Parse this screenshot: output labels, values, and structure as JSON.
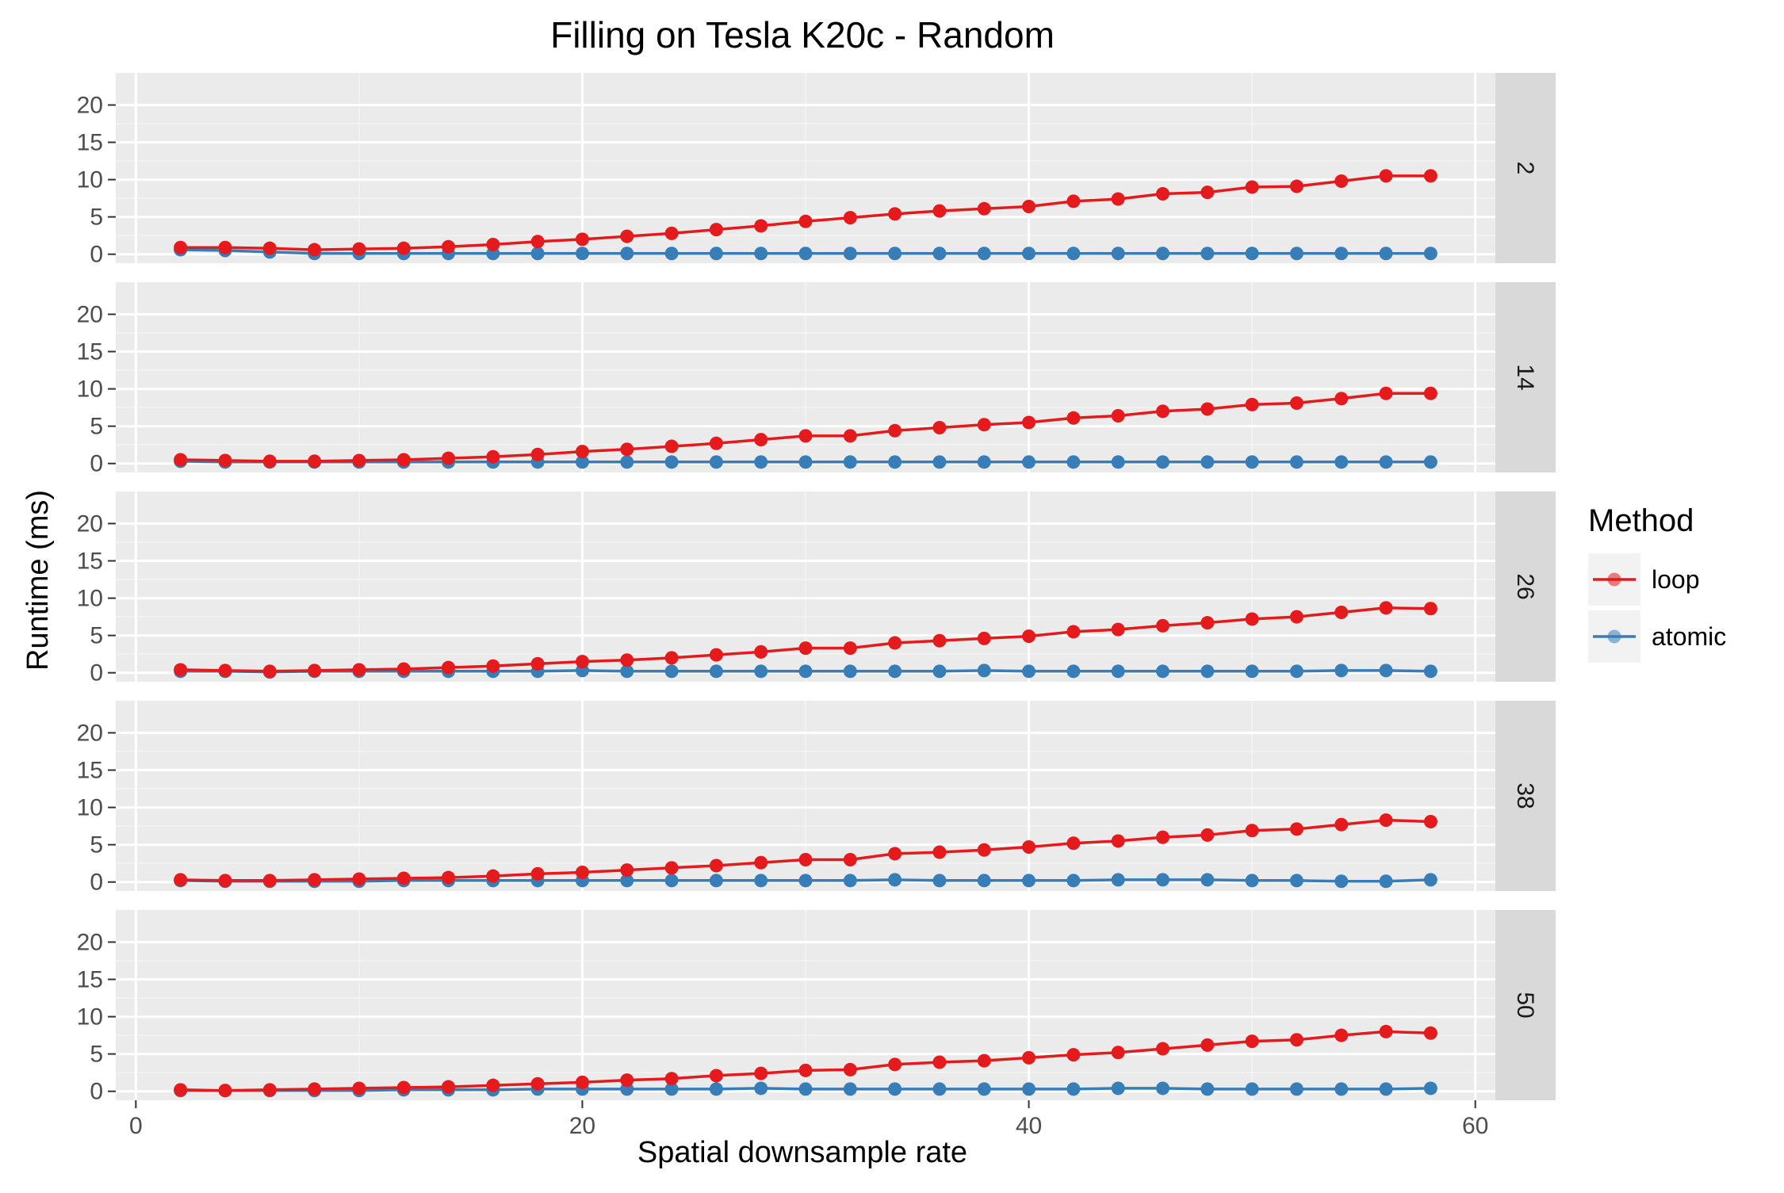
{
  "chart_data": {
    "type": "line",
    "title": "Filling on Tesla K20c - Random",
    "xlabel": "Spatial downsample rate",
    "ylabel": "Runtime (ms)",
    "xlim": [
      -0.9,
      60.9
    ],
    "ylim": [
      -1.2,
      24.3
    ],
    "x_ticks": [
      0,
      20,
      40,
      60
    ],
    "y_ticks": [
      0,
      5,
      10,
      15,
      20
    ],
    "grid": true,
    "legend": {
      "title": "Method",
      "position": "right",
      "entries": [
        "loop",
        "atomic"
      ]
    },
    "colors": {
      "loop": "#e41a1c",
      "atomic": "#377eb8"
    },
    "x": [
      2,
      4,
      6,
      8,
      10,
      12,
      14,
      16,
      18,
      20,
      22,
      24,
      26,
      28,
      30,
      32,
      34,
      36,
      38,
      40,
      42,
      44,
      46,
      48,
      50,
      52,
      54,
      56,
      58
    ],
    "panels": [
      {
        "label": "2",
        "series": [
          {
            "name": "loop",
            "values": [
              0.9,
              0.9,
              0.8,
              0.6,
              0.7,
              0.8,
              1.0,
              1.3,
              1.7,
              2.0,
              2.4,
              2.8,
              3.3,
              3.8,
              4.4,
              4.9,
              5.4,
              5.8,
              6.1,
              6.4,
              7.1,
              7.4,
              8.1,
              8.3,
              9.0,
              9.1,
              9.8,
              10.5,
              10.5
            ]
          },
          {
            "name": "atomic",
            "values": [
              0.6,
              0.5,
              0.3,
              0.1,
              0.1,
              0.1,
              0.1,
              0.1,
              0.1,
              0.1,
              0.1,
              0.1,
              0.1,
              0.1,
              0.1,
              0.1,
              0.1,
              0.1,
              0.1,
              0.1,
              0.1,
              0.1,
              0.1,
              0.1,
              0.1,
              0.1,
              0.1,
              0.1,
              0.1
            ]
          }
        ]
      },
      {
        "label": "14",
        "series": [
          {
            "name": "loop",
            "values": [
              0.5,
              0.4,
              0.3,
              0.3,
              0.4,
              0.5,
              0.7,
              0.9,
              1.2,
              1.6,
              1.9,
              2.3,
              2.7,
              3.2,
              3.7,
              3.7,
              4.4,
              4.8,
              5.2,
              5.5,
              6.1,
              6.4,
              7.0,
              7.3,
              7.9,
              8.1,
              8.7,
              9.4,
              9.4
            ]
          },
          {
            "name": "atomic",
            "values": [
              0.3,
              0.2,
              0.2,
              0.2,
              0.2,
              0.2,
              0.2,
              0.2,
              0.2,
              0.2,
              0.2,
              0.2,
              0.2,
              0.2,
              0.2,
              0.2,
              0.2,
              0.2,
              0.2,
              0.2,
              0.2,
              0.2,
              0.2,
              0.2,
              0.2,
              0.2,
              0.2,
              0.2,
              0.2
            ]
          }
        ]
      },
      {
        "label": "26",
        "series": [
          {
            "name": "loop",
            "values": [
              0.4,
              0.3,
              0.2,
              0.3,
              0.4,
              0.5,
              0.7,
              0.9,
              1.2,
              1.5,
              1.7,
              2.0,
              2.4,
              2.8,
              3.3,
              3.3,
              4.0,
              4.3,
              4.6,
              4.9,
              5.5,
              5.8,
              6.3,
              6.7,
              7.2,
              7.5,
              8.1,
              8.7,
              8.6
            ]
          },
          {
            "name": "atomic",
            "values": [
              0.2,
              0.2,
              0.1,
              0.2,
              0.2,
              0.2,
              0.2,
              0.2,
              0.2,
              0.3,
              0.2,
              0.2,
              0.2,
              0.2,
              0.2,
              0.2,
              0.2,
              0.2,
              0.3,
              0.2,
              0.2,
              0.2,
              0.2,
              0.2,
              0.2,
              0.2,
              0.3,
              0.3,
              0.2
            ]
          }
        ]
      },
      {
        "label": "38",
        "series": [
          {
            "name": "loop",
            "values": [
              0.3,
              0.2,
              0.2,
              0.3,
              0.4,
              0.5,
              0.6,
              0.8,
              1.1,
              1.3,
              1.6,
              1.9,
              2.2,
              2.6,
              3.0,
              3.0,
              3.8,
              4.0,
              4.3,
              4.7,
              5.2,
              5.5,
              6.0,
              6.3,
              6.9,
              7.1,
              7.7,
              8.3,
              8.1
            ]
          },
          {
            "name": "atomic",
            "values": [
              0.2,
              0.1,
              0.1,
              0.1,
              0.1,
              0.2,
              0.2,
              0.2,
              0.2,
              0.2,
              0.2,
              0.2,
              0.2,
              0.2,
              0.2,
              0.2,
              0.3,
              0.2,
              0.2,
              0.2,
              0.2,
              0.3,
              0.3,
              0.3,
              0.2,
              0.2,
              0.1,
              0.1,
              0.3
            ]
          }
        ]
      },
      {
        "label": "50",
        "series": [
          {
            "name": "loop",
            "values": [
              0.2,
              0.1,
              0.2,
              0.3,
              0.4,
              0.5,
              0.6,
              0.8,
              1.0,
              1.2,
              1.5,
              1.7,
              2.1,
              2.4,
              2.8,
              2.9,
              3.6,
              3.9,
              4.1,
              4.5,
              4.9,
              5.2,
              5.7,
              6.2,
              6.7,
              6.9,
              7.5,
              8.0,
              7.8
            ]
          },
          {
            "name": "atomic",
            "values": [
              0.1,
              0.1,
              0.1,
              0.1,
              0.1,
              0.2,
              0.2,
              0.2,
              0.3,
              0.3,
              0.3,
              0.3,
              0.3,
              0.4,
              0.3,
              0.3,
              0.3,
              0.3,
              0.3,
              0.3,
              0.3,
              0.4,
              0.4,
              0.3,
              0.3,
              0.3,
              0.3,
              0.3,
              0.4
            ]
          }
        ]
      }
    ]
  }
}
